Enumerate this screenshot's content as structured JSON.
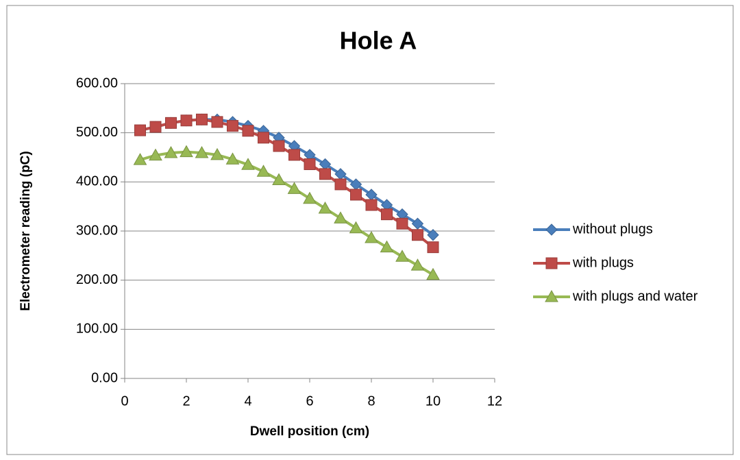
{
  "chart_data": {
    "type": "line",
    "title": "Hole A",
    "x_label": "Dwell position (cm)",
    "y_label": "Electrometer reading (pC)",
    "xlim": [
      0,
      12
    ],
    "xticks": [
      0,
      2,
      4,
      6,
      8,
      10,
      12
    ],
    "ylim": [
      0,
      600
    ],
    "yticks": [
      {
        "value": 0,
        "label": "0.00"
      },
      {
        "value": 100,
        "label": "100.00"
      },
      {
        "value": 200,
        "label": "200.00"
      },
      {
        "value": 300,
        "label": "300.00"
      },
      {
        "value": 400,
        "label": "400.00"
      },
      {
        "value": 500,
        "label": "500.00"
      },
      {
        "value": 600,
        "label": "600.00"
      }
    ],
    "grid": true,
    "legend": "right",
    "x": [
      0.5,
      1,
      1.5,
      2,
      2.5,
      3,
      3.5,
      4,
      4.5,
      5,
      5.5,
      6,
      6.5,
      7,
      7.5,
      8,
      8.5,
      9,
      9.5,
      10
    ],
    "series": [
      {
        "name": "without plugs",
        "color": "#4a7ebb",
        "marker": "diamond",
        "values": [
          505,
          512,
          520,
          525,
          527,
          527,
          522,
          514,
          504,
          490,
          473,
          455,
          436,
          416,
          395,
          374,
          353,
          334,
          315,
          292
        ]
      },
      {
        "name": "with plugs",
        "color": "#be4b48",
        "marker": "square",
        "values": [
          505,
          512,
          520,
          525,
          527,
          522,
          514,
          504,
          490,
          473,
          455,
          436,
          416,
          395,
          374,
          353,
          334,
          315,
          292,
          267
        ]
      },
      {
        "name": "with plugs and water",
        "color": "#98b954",
        "marker": "triangle",
        "values": [
          445,
          454,
          459,
          461,
          459,
          455,
          446,
          435,
          421,
          404,
          386,
          366,
          346,
          326,
          306,
          286,
          267,
          248,
          230,
          211
        ]
      }
    ]
  }
}
